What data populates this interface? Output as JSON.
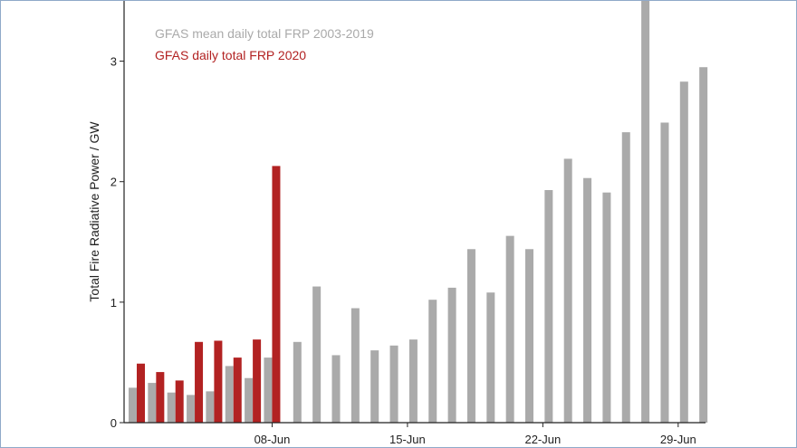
{
  "chart_data": {
    "type": "bar",
    "title": "",
    "xlabel": "",
    "ylabel": "Total Fire Radiative Power / GW",
    "ylim": [
      0,
      3.5
    ],
    "yticks": [
      0,
      1,
      2,
      3
    ],
    "x_start_day_of_june": 1,
    "xticks": [
      {
        "day": 8,
        "label": "08-Jun"
      },
      {
        "day": 15,
        "label": "15-Jun"
      },
      {
        "day": 22,
        "label": "22-Jun"
      },
      {
        "day": 29,
        "label": "29-Jun"
      }
    ],
    "legend_position": "top-left",
    "grid": false,
    "series": [
      {
        "name": "GFAS mean daily total FRP 2003-2019",
        "color": "#aaaaaa",
        "values": [
          0.29,
          0.33,
          0.25,
          0.23,
          0.26,
          0.47,
          0.37,
          0.54,
          0.67,
          1.13,
          0.56,
          0.95,
          0.6,
          0.64,
          0.69,
          1.02,
          1.12,
          1.44,
          1.08,
          1.55,
          1.44,
          1.93,
          2.19,
          2.03,
          1.91,
          2.41,
          3.55,
          2.49,
          2.83,
          2.95
        ]
      },
      {
        "name": "GFAS daily total FRP 2020",
        "color": "#b22222",
        "values": [
          0.49,
          0.42,
          0.35,
          0.67,
          0.68,
          0.54,
          0.69,
          2.13
        ]
      }
    ]
  }
}
